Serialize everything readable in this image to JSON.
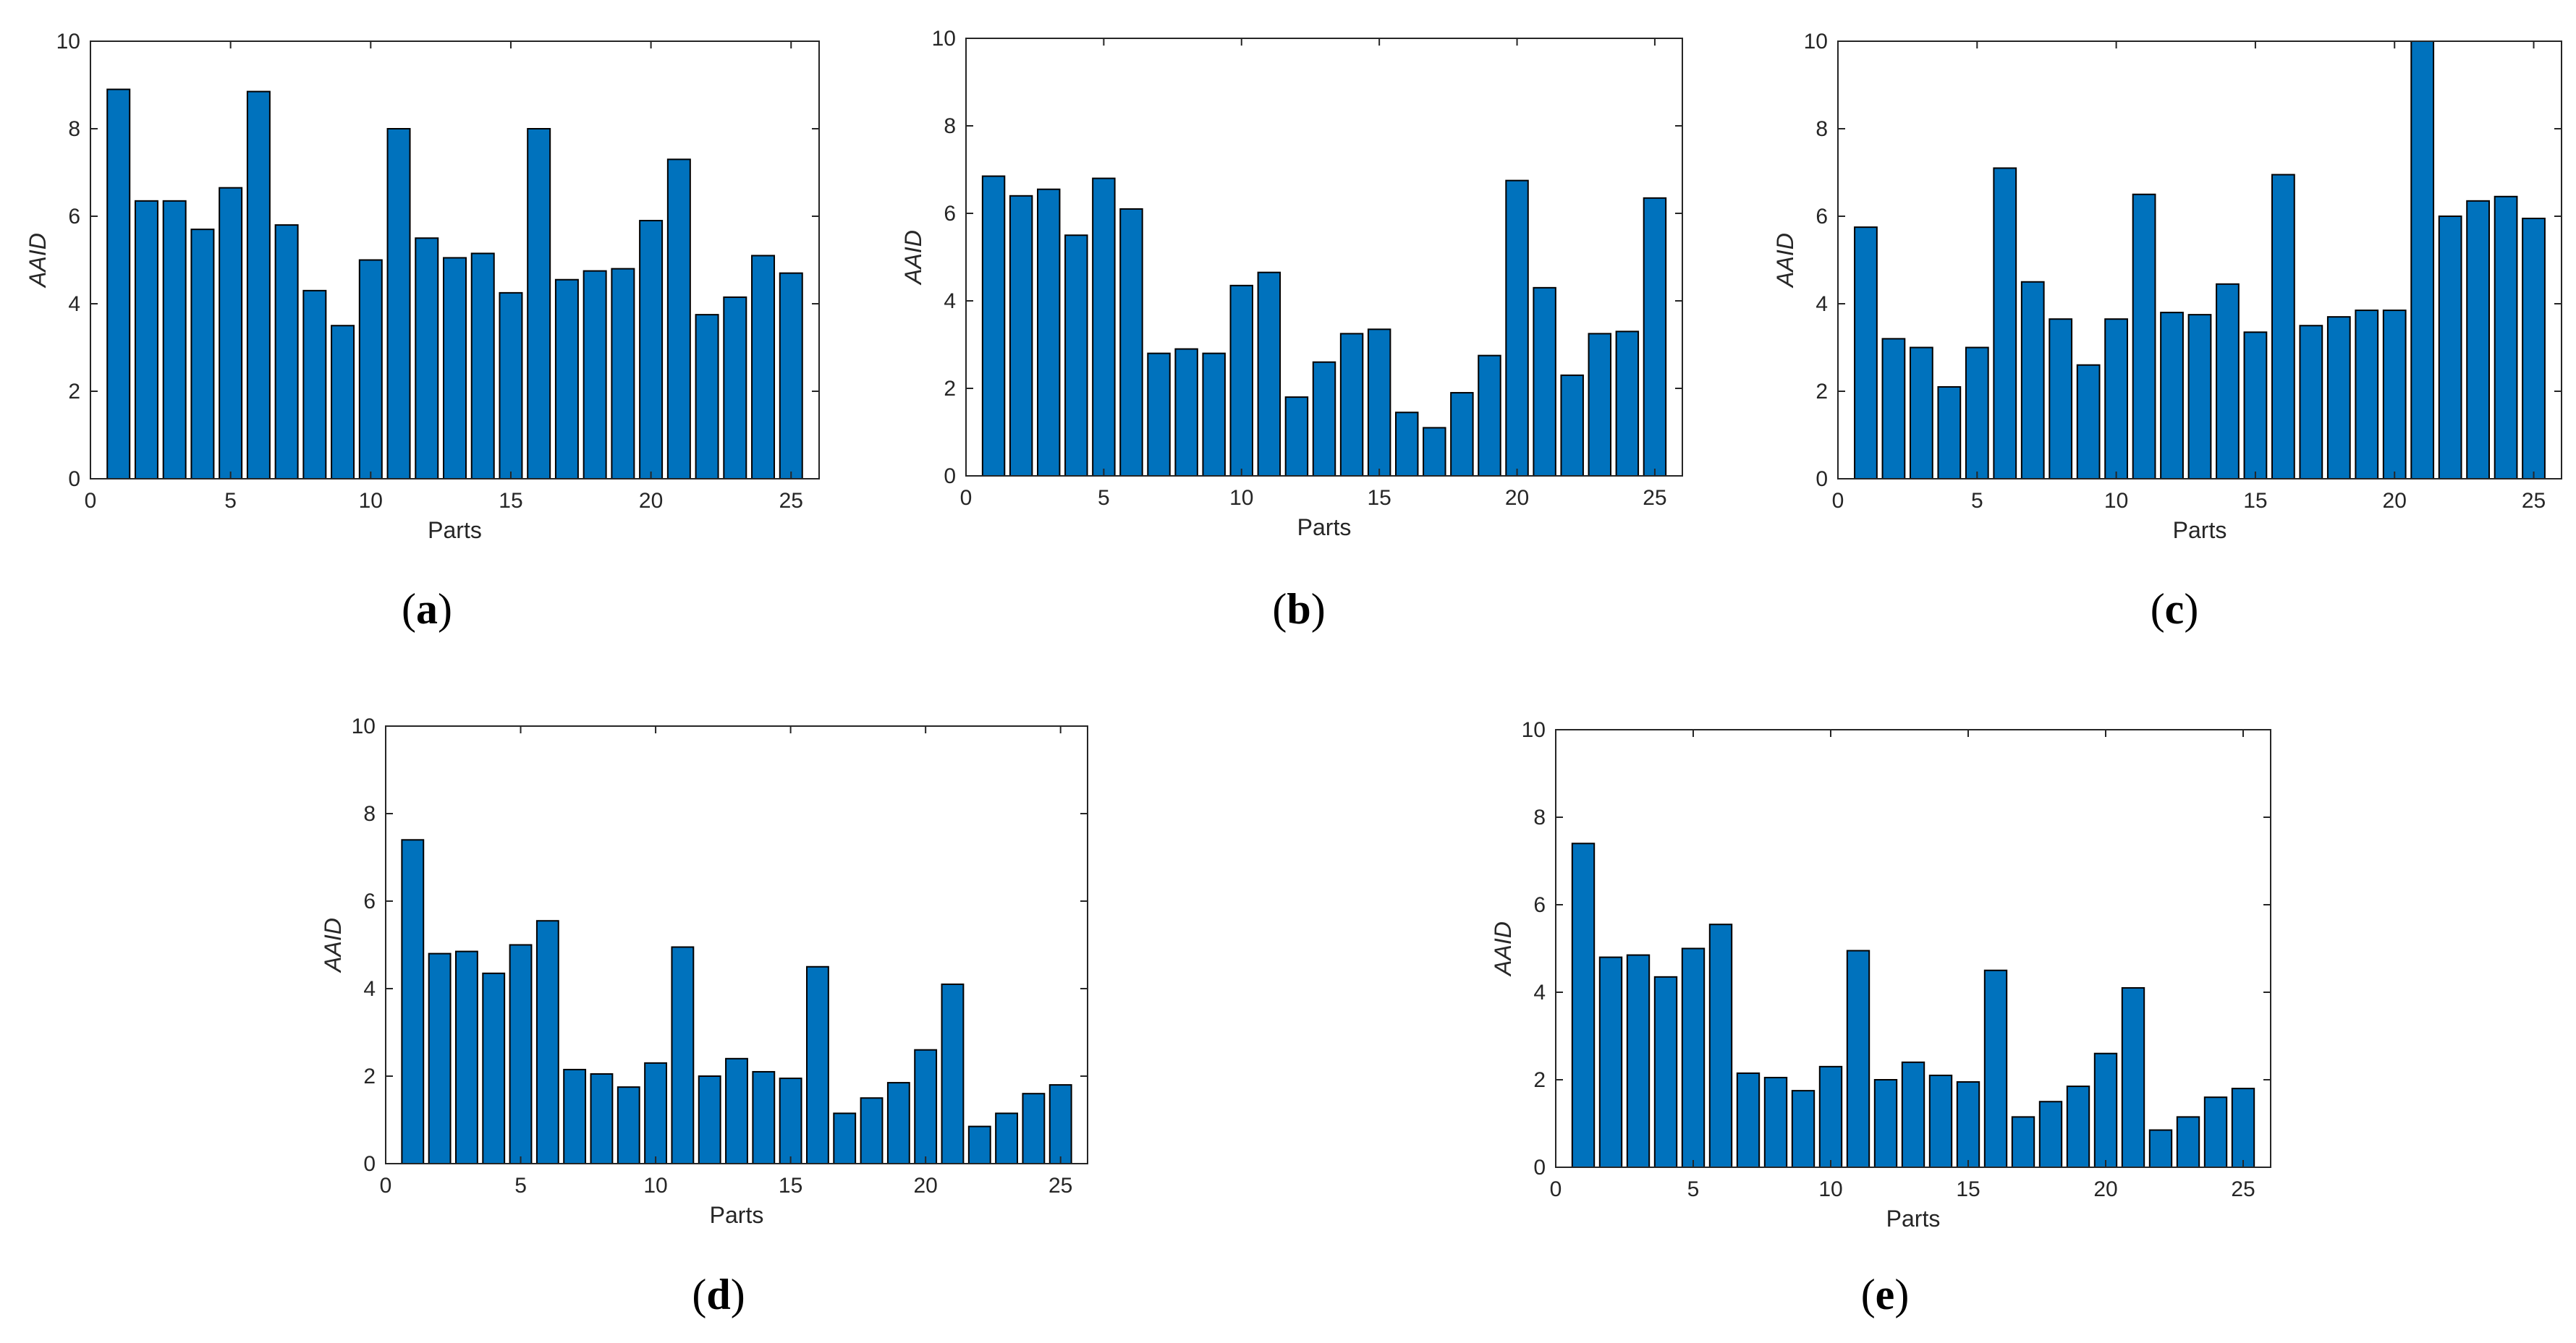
{
  "figure": {
    "bar_color": "#0072BD",
    "bar_edge_color": "#000000"
  },
  "chart_data": [
    {
      "id": "a",
      "type": "bar",
      "caption": "(a)",
      "caption_open": "(",
      "caption_letter": "a",
      "caption_close": ")",
      "xlabel": "Parts",
      "ylabel": "AAID",
      "xlim": [
        0,
        26
      ],
      "ylim": [
        0,
        10
      ],
      "xticks": [
        0,
        5,
        10,
        15,
        20,
        25
      ],
      "yticks": [
        0,
        2,
        4,
        6,
        8,
        10
      ],
      "categories": [
        1,
        2,
        3,
        4,
        5,
        6,
        7,
        8,
        9,
        10,
        11,
        12,
        13,
        14,
        15,
        16,
        17,
        18,
        19,
        20,
        21,
        22,
        23,
        24,
        25
      ],
      "values": [
        8.9,
        6.35,
        6.35,
        5.7,
        6.65,
        8.85,
        5.8,
        4.3,
        3.5,
        5.0,
        8.0,
        5.5,
        5.05,
        5.15,
        4.25,
        8.0,
        4.55,
        4.75,
        4.8,
        5.9,
        7.3,
        3.75,
        4.15,
        5.1,
        4.7
      ]
    },
    {
      "id": "b",
      "type": "bar",
      "caption": "(b)",
      "caption_open": "(",
      "caption_letter": "b",
      "caption_close": ")",
      "xlabel": "Parts",
      "ylabel": "AAID",
      "xlim": [
        0,
        26
      ],
      "ylim": [
        0,
        10
      ],
      "xticks": [
        0,
        5,
        10,
        15,
        20,
        25
      ],
      "yticks": [
        0,
        2,
        4,
        6,
        8,
        10
      ],
      "categories": [
        1,
        2,
        3,
        4,
        5,
        6,
        7,
        8,
        9,
        10,
        11,
        12,
        13,
        14,
        15,
        16,
        17,
        18,
        19,
        20,
        21,
        22,
        23,
        24,
        25
      ],
      "values": [
        6.85,
        6.4,
        6.55,
        5.5,
        6.8,
        6.1,
        2.8,
        2.9,
        2.8,
        4.35,
        4.65,
        1.8,
        2.6,
        3.25,
        3.35,
        1.45,
        1.1,
        1.9,
        2.75,
        6.75,
        4.3,
        2.3,
        3.25,
        3.3,
        6.35
      ]
    },
    {
      "id": "c",
      "type": "bar",
      "caption": "(c)",
      "caption_open": "(",
      "caption_letter": "c",
      "caption_close": ")",
      "xlabel": "Parts",
      "ylabel": "AAID",
      "xlim": [
        0,
        26
      ],
      "ylim": [
        0,
        10
      ],
      "xticks": [
        0,
        5,
        10,
        15,
        20,
        25
      ],
      "yticks": [
        0,
        2,
        4,
        6,
        8,
        10
      ],
      "categories": [
        1,
        2,
        3,
        4,
        5,
        6,
        7,
        8,
        9,
        10,
        11,
        12,
        13,
        14,
        15,
        16,
        17,
        18,
        19,
        20,
        21,
        22,
        23,
        24,
        25
      ],
      "values": [
        5.75,
        3.2,
        3.0,
        2.1,
        3.0,
        7.1,
        4.5,
        3.65,
        2.6,
        3.65,
        6.5,
        3.8,
        3.75,
        4.45,
        3.35,
        6.95,
        3.5,
        3.7,
        3.85,
        3.85,
        10.0,
        6.0,
        6.35,
        6.45,
        5.95
      ]
    },
    {
      "id": "d",
      "type": "bar",
      "caption": "(d)",
      "caption_open": "(",
      "caption_letter": "d",
      "caption_close": ")",
      "xlabel": "Parts",
      "ylabel": "AAID",
      "xlim": [
        0,
        26
      ],
      "ylim": [
        0,
        10
      ],
      "xticks": [
        0,
        5,
        10,
        15,
        20,
        25
      ],
      "yticks": [
        0,
        2,
        4,
        6,
        8,
        10
      ],
      "categories": [
        1,
        2,
        3,
        4,
        5,
        6,
        7,
        8,
        9,
        10,
        11,
        12,
        13,
        14,
        15,
        16,
        17,
        18,
        19,
        20,
        21,
        22,
        23,
        24,
        25
      ],
      "values": [
        7.4,
        4.8,
        4.85,
        4.35,
        5.0,
        5.55,
        2.15,
        2.05,
        1.75,
        2.3,
        4.95,
        2.0,
        2.4,
        2.1,
        1.95,
        4.5,
        1.15,
        1.5,
        1.85,
        2.6,
        4.1,
        0.85,
        1.15,
        1.6,
        1.8
      ]
    },
    {
      "id": "e",
      "type": "bar",
      "caption": "(e)",
      "caption_open": "(",
      "caption_letter": "e",
      "caption_close": ")",
      "xlabel": "Parts",
      "ylabel": "AAID",
      "xlim": [
        0,
        26
      ],
      "ylim": [
        0,
        10
      ],
      "xticks": [
        0,
        5,
        10,
        15,
        20,
        25
      ],
      "yticks": [
        0,
        2,
        4,
        6,
        8,
        10
      ],
      "categories": [
        1,
        2,
        3,
        4,
        5,
        6,
        7,
        8,
        9,
        10,
        11,
        12,
        13,
        14,
        15,
        16,
        17,
        18,
        19,
        20,
        21,
        22,
        23,
        24,
        25
      ],
      "values": [
        7.4,
        4.8,
        4.85,
        4.35,
        5.0,
        5.55,
        2.15,
        2.05,
        1.75,
        2.3,
        4.95,
        2.0,
        2.4,
        2.1,
        1.95,
        4.5,
        1.15,
        1.5,
        1.85,
        2.6,
        4.1,
        0.85,
        1.15,
        1.6,
        1.8
      ]
    }
  ]
}
